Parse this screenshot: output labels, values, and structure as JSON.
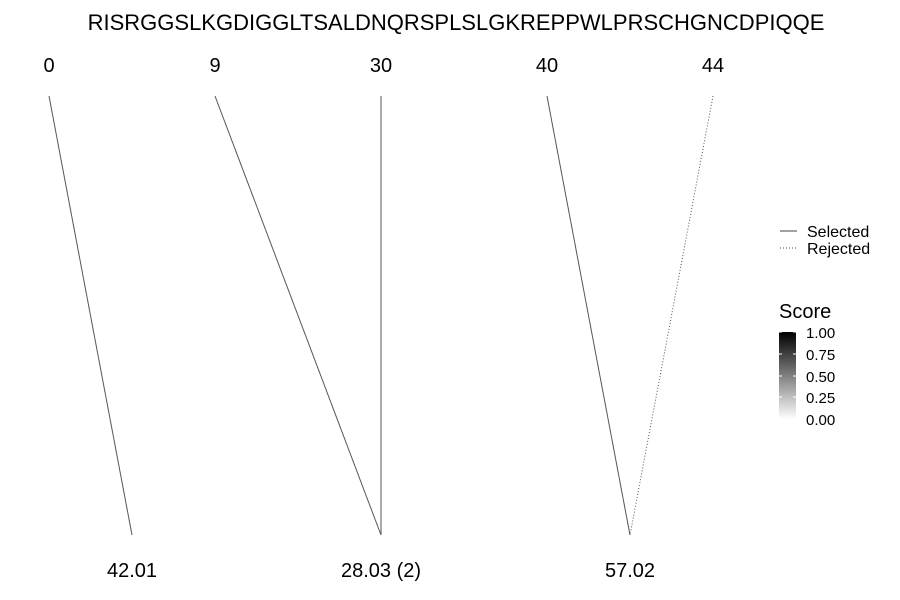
{
  "sequence": "RISRGGSLKGDIGGLTSALDNQRSPLSLGKREPPWLPRSCHGNCDPIQQE",
  "top_positions": [
    "0",
    "9",
    "30",
    "40",
    "44"
  ],
  "bottom_labels": [
    "42.01",
    "28.03 (2)",
    "57.02"
  ],
  "connections": [
    {
      "top": 0,
      "bottom": 0,
      "status": "selected",
      "score": 0.55
    },
    {
      "top": 1,
      "bottom": 1,
      "status": "selected",
      "score": 0.55
    },
    {
      "top": 2,
      "bottom": 1,
      "status": "selected",
      "score": 0.55
    },
    {
      "top": 3,
      "bottom": 2,
      "status": "selected",
      "score": 0.55
    },
    {
      "top": 4,
      "bottom": 2,
      "status": "rejected",
      "score": 0.55
    }
  ],
  "legend": {
    "linetype": [
      {
        "label": "Selected",
        "style": "solid"
      },
      {
        "label": "Rejected",
        "style": "dotted"
      }
    ],
    "score": {
      "title": "Score",
      "ticks": [
        "1.00",
        "0.75",
        "0.50",
        "0.25",
        "0.00"
      ],
      "color_high": "#000000",
      "color_low": "#ffffff"
    }
  }
}
